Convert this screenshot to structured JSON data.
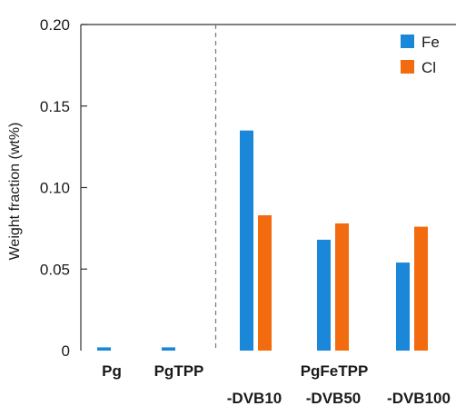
{
  "chart_data": {
    "type": "bar",
    "ylabel": "Weight fraction (wt%)",
    "ylim": [
      0,
      0.2
    ],
    "yticks": [
      "0",
      "0.05",
      "0.10",
      "0.15",
      "0.20"
    ],
    "y_tick_values": [
      0,
      0.05,
      0.1,
      0.15,
      0.2
    ],
    "categories": [
      "Pg",
      "PgTPP",
      "-DVB10",
      "-DVB50",
      "-DVB100"
    ],
    "group_label": "PgFeTPP",
    "divider_after_category": 1,
    "legend": {
      "placement": "top-right"
    },
    "series": [
      {
        "name": "Fe",
        "color": "#1a87d9",
        "values": [
          0.002,
          0.002,
          0.135,
          0.068,
          0.054
        ]
      },
      {
        "name": "Cl",
        "color": "#f26b0f",
        "values": [
          null,
          null,
          0.083,
          0.078,
          0.076
        ]
      }
    ]
  }
}
